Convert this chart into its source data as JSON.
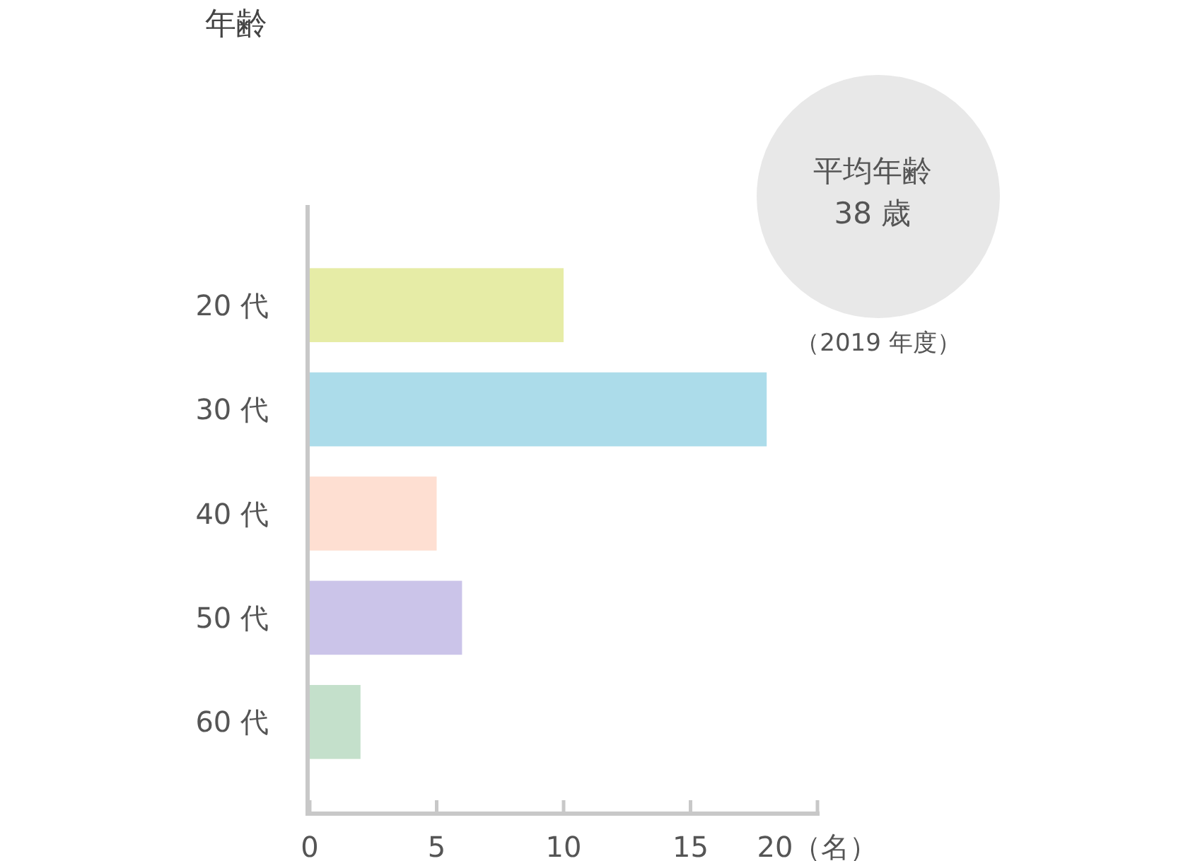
{
  "chart_data": {
    "type": "bar",
    "orientation": "horizontal",
    "title": "年齢",
    "categories": [
      "20 代",
      "30 代",
      "40 代",
      "50 代",
      "60 代"
    ],
    "values": [
      10,
      18,
      5,
      6,
      2
    ],
    "colors": [
      "#e6eca6",
      "#acdcea",
      "#fedfd2",
      "#cbc4e9",
      "#c4e0cb"
    ],
    "xlim": [
      0,
      20
    ],
    "xticks": [
      0,
      5,
      10,
      15,
      {
        "value": 20,
        "label": "20（名）"
      }
    ],
    "grid": false,
    "annotations": [
      "平均年齢\n38 歳",
      "（2019 年度）"
    ]
  }
}
